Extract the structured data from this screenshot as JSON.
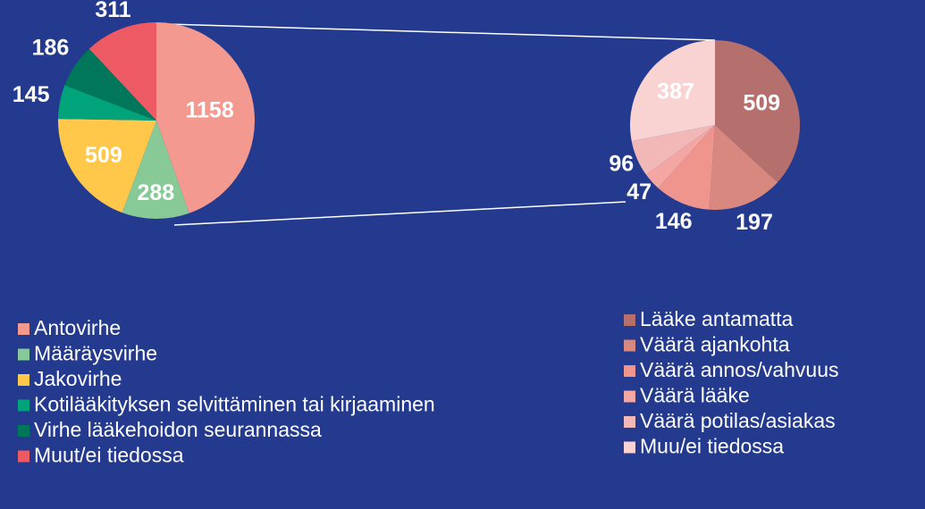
{
  "chart_data": [
    {
      "type": "pie",
      "categories": [
        "Antovirhe",
        "Määräysvirhe",
        "Jakovirhe",
        "Kotilääkityksen selvittäminen tai kirjaaminen",
        "Virhe lääkehoidon seurannassa",
        "Muut/ei tiedossa"
      ],
      "values": [
        1158,
        288,
        509,
        145,
        186,
        311
      ],
      "colors": [
        "#f4998f",
        "#88c998",
        "#ffc84a",
        "#00a37a",
        "#00775a",
        "#ee5a63"
      ],
      "legend": "bottom"
    },
    {
      "type": "pie",
      "categories": [
        "Lääke antamatta",
        "Väärä ajankohta",
        "Väärä annos/vahvuus",
        "Väärä lääke",
        "Väärä potilas/asiakas",
        "Muu/ei tiedossa"
      ],
      "values": [
        509,
        197,
        146,
        47,
        96,
        387
      ],
      "colors": [
        "#b5706e",
        "#d98880",
        "#f0948e",
        "#f4a6a2",
        "#f2b8b7",
        "#f9d3d2"
      ],
      "legend": "bottom"
    }
  ]
}
